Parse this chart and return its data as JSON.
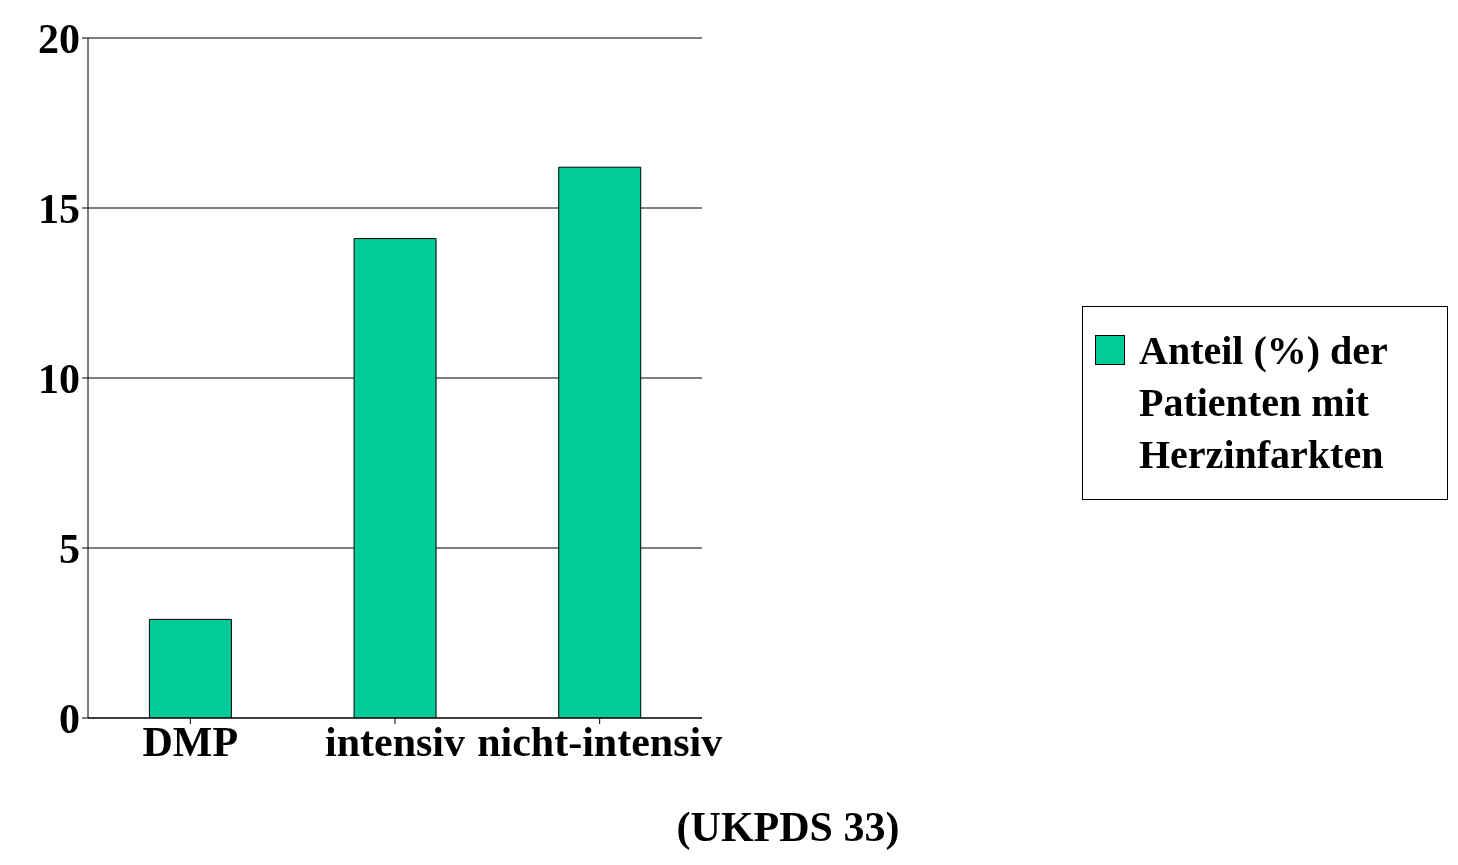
{
  "chart_data": {
    "type": "bar",
    "categories": [
      "DMP",
      "intensiv",
      "nicht-intensiv"
    ],
    "series": [
      {
        "name": "Anteil (%) der Patienten mit Herzinfarkten",
        "color": "#00cc99",
        "values": [
          2.9,
          14.1,
          16.2
        ]
      }
    ],
    "ylim": [
      0,
      20
    ],
    "yticks": [
      0,
      5,
      10,
      15,
      20
    ],
    "grid": "y",
    "legend": "right",
    "annotations": [
      "(UKPDS 33)"
    ]
  }
}
